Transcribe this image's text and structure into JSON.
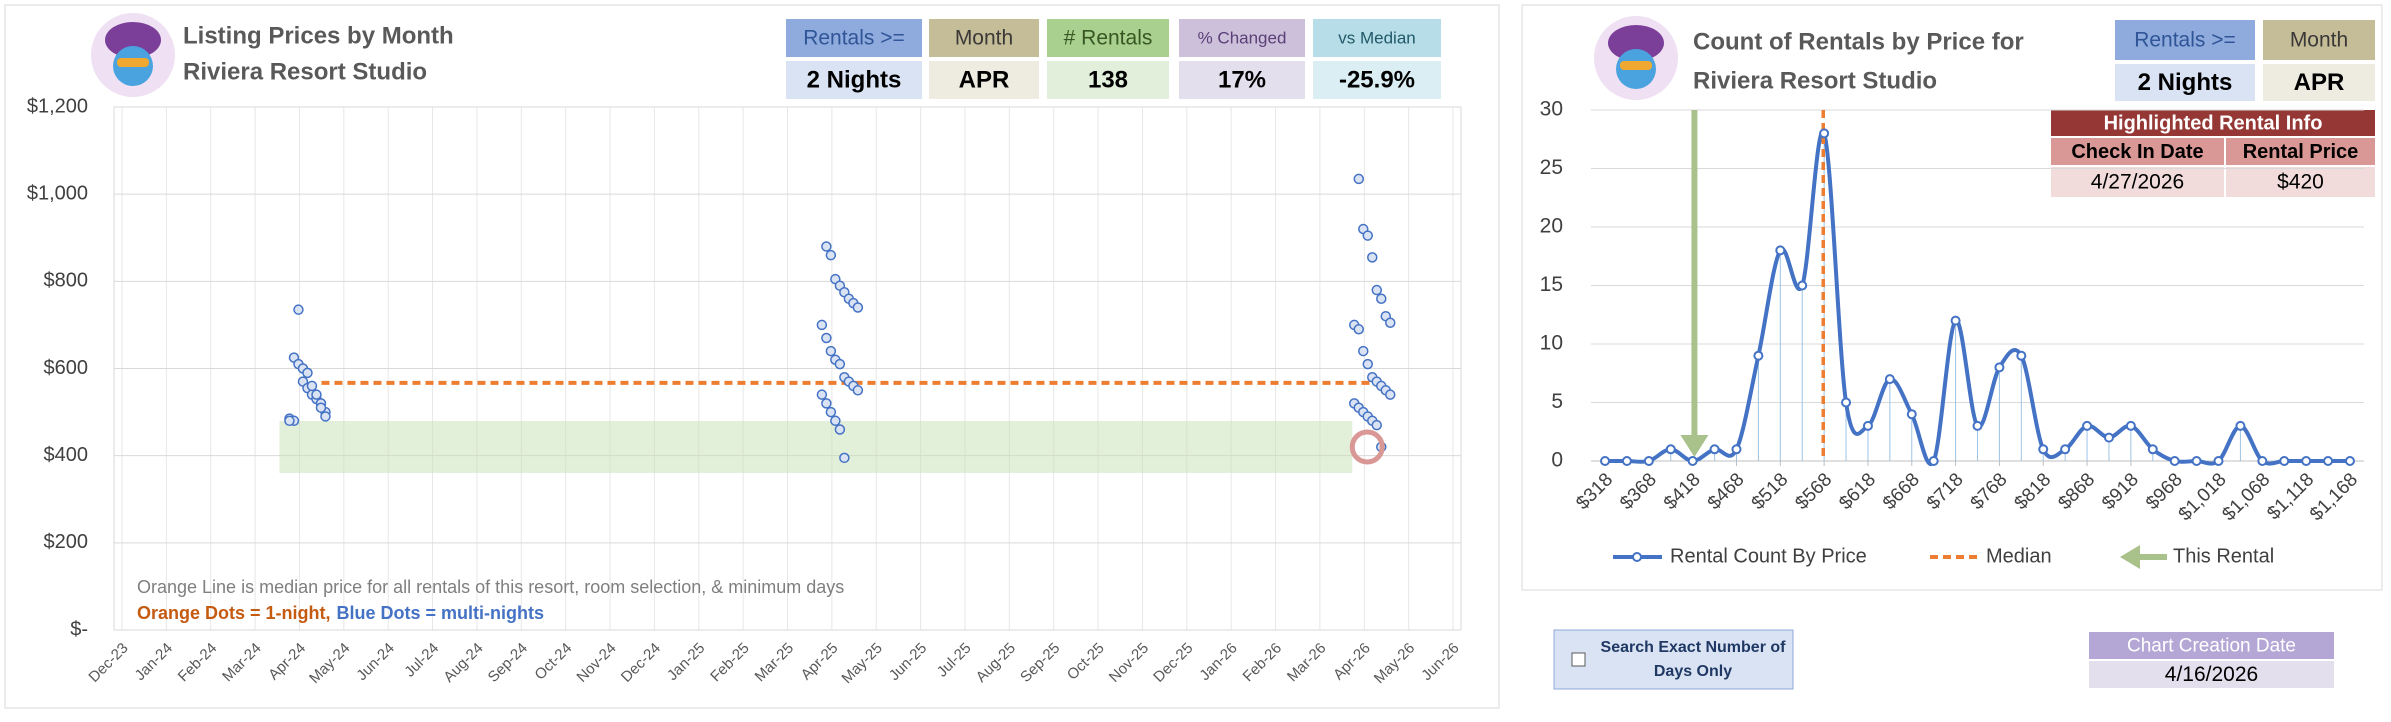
{
  "chart_data": [
    {
      "type": "scatter",
      "title": "Listing Prices by Month",
      "subtitle": "Riviera Resort Studio",
      "categories": [
        "Dec-23",
        "Jan-24",
        "Feb-24",
        "Mar-24",
        "Apr-24",
        "May-24",
        "Jun-24",
        "Jul-24",
        "Aug-24",
        "Sep-24",
        "Oct-24",
        "Nov-24",
        "Dec-24",
        "Jan-25",
        "Feb-25",
        "Mar-25",
        "Apr-25",
        "May-25",
        "Jun-25",
        "Jul-25",
        "Aug-25",
        "Sep-25",
        "Oct-25",
        "Nov-25",
        "Dec-25",
        "Jan-26",
        "Feb-26",
        "Mar-26",
        "Apr-26",
        "May-26",
        "Jun-26"
      ],
      "ylim": [
        0,
        1200
      ],
      "yticks": [
        {
          "value": 0,
          "label": "$-"
        },
        {
          "value": 200,
          "label": "$200"
        },
        {
          "value": 400,
          "label": "$400"
        },
        {
          "value": 600,
          "label": "$600"
        },
        {
          "value": 800,
          "label": "$800"
        },
        {
          "value": 1000,
          "label": "$1,000"
        },
        {
          "value": 1200,
          "label": "$1,200"
        }
      ],
      "grid": true,
      "series": [
        {
          "color": "#4472c4",
          "x": [
            "Apr-24",
            "Apr-24",
            "Apr-24",
            "Apr-24",
            "Apr-24",
            "Apr-24",
            "Apr-24",
            "Apr-24",
            "Apr-24",
            "Apr-24",
            "Apr-24",
            "Apr-24",
            "Apr-24",
            "Apr-24",
            "Apr-24",
            "Apr-24",
            "Apr-24",
            "Apr-24",
            "Apr-25",
            "Apr-25",
            "Apr-25",
            "Apr-25",
            "Apr-25",
            "Apr-25",
            "Apr-25",
            "Apr-25",
            "Apr-25",
            "Apr-25",
            "Apr-25",
            "Apr-25",
            "Apr-25",
            "Apr-25",
            "Apr-25",
            "Apr-25",
            "Apr-25",
            "Apr-25",
            "Apr-25",
            "Apr-25",
            "Apr-25",
            "Apr-25",
            "Apr-25",
            "Apr-26",
            "Apr-26",
            "Apr-26",
            "Apr-26",
            "Apr-26",
            "Apr-26",
            "Apr-26",
            "Apr-26",
            "Apr-26",
            "Apr-26",
            "Apr-26",
            "Apr-26",
            "Apr-26",
            "Apr-26",
            "Apr-26",
            "Apr-26",
            "Apr-26",
            "Apr-26",
            "Apr-26",
            "Apr-26",
            "Apr-26",
            "Apr-26",
            "Apr-26",
            "Apr-26"
          ],
          "values": [
            625,
            610,
            570,
            555,
            540,
            530,
            520,
            500,
            485,
            480,
            735,
            600,
            590,
            560,
            540,
            510,
            490,
            480,
            880,
            860,
            805,
            790,
            775,
            760,
            750,
            740,
            700,
            670,
            640,
            620,
            610,
            580,
            570,
            560,
            550,
            540,
            520,
            500,
            480,
            460,
            395,
            1035,
            920,
            905,
            855,
            780,
            760,
            720,
            705,
            700,
            690,
            640,
            610,
            580,
            570,
            560,
            550,
            540,
            520,
            510,
            500,
            490,
            480,
            470,
            420
          ]
        }
      ],
      "median": 567,
      "median_color": "#ed7d31",
      "highlight": {
        "x": "Apr-26",
        "y": 420
      },
      "note": "Orange Line is median price for all rentals of this resort, room selection, & minimum days",
      "dots_note": [
        {
          "text": "Orange Dots = 1-night,",
          "color": "#c55a11"
        },
        {
          "text": "Blue Dots = multi-nights",
          "color": "#4472c4"
        }
      ]
    },
    {
      "type": "line",
      "title": "Count of Rentals by Price for",
      "subtitle": "Riviera Resort Studio",
      "x": [
        318,
        343,
        368,
        393,
        418,
        443,
        468,
        493,
        518,
        543,
        568,
        593,
        618,
        643,
        668,
        693,
        718,
        743,
        768,
        793,
        818,
        843,
        868,
        893,
        918,
        943,
        968,
        993,
        1018,
        1043,
        1068,
        1093,
        1118,
        1143,
        1168
      ],
      "xlim": [
        302,
        1184
      ],
      "xticks": [
        {
          "value": 318,
          "label": "$318"
        },
        {
          "value": 368,
          "label": "$368"
        },
        {
          "value": 418,
          "label": "$418"
        },
        {
          "value": 468,
          "label": "$468"
        },
        {
          "value": 518,
          "label": "$518"
        },
        {
          "value": 568,
          "label": "$568"
        },
        {
          "value": 618,
          "label": "$618"
        },
        {
          "value": 668,
          "label": "$668"
        },
        {
          "value": 718,
          "label": "$718"
        },
        {
          "value": 768,
          "label": "$768"
        },
        {
          "value": 818,
          "label": "$818"
        },
        {
          "value": 868,
          "label": "$868"
        },
        {
          "value": 918,
          "label": "$918"
        },
        {
          "value": 968,
          "label": "$968"
        },
        {
          "value": 1018,
          "label": "$1,018"
        },
        {
          "value": 1068,
          "label": "$1,068"
        },
        {
          "value": 1118,
          "label": "$1,118"
        },
        {
          "value": 1168,
          "label": "$1,168"
        }
      ],
      "ylim": [
        0,
        30
      ],
      "yticks": [
        0,
        5,
        10,
        15,
        20,
        25,
        30
      ],
      "grid": true,
      "series": [
        {
          "name": "Rental Count By Price",
          "color": "#4472c4",
          "values": [
            0,
            0,
            0,
            1,
            0,
            1,
            1,
            9,
            18,
            15,
            28,
            5,
            3,
            7,
            4,
            0,
            12,
            3,
            8,
            9,
            1,
            1,
            3,
            2,
            3,
            1,
            0,
            0,
            0,
            3,
            0,
            0,
            0,
            0,
            0
          ]
        }
      ],
      "median": {
        "name": "Median",
        "value": 567,
        "color": "#ed7d31"
      },
      "this_rental": {
        "name": "This Rental",
        "value": 420,
        "color": "#a9c18a"
      }
    }
  ],
  "left_stats": [
    {
      "label": "Rentals >=",
      "value": "2 Nights"
    },
    {
      "label": "Month",
      "value": "APR"
    },
    {
      "label": "# Rentals",
      "value": "138"
    },
    {
      "label": "% Changed",
      "value": "17%"
    },
    {
      "label": "vs Median",
      "value": "-25.9%"
    }
  ],
  "right_stats": [
    {
      "label": "Rentals >=",
      "value": "2 Nights"
    },
    {
      "label": "Month",
      "value": "APR"
    }
  ],
  "highlighted_rental": {
    "title": "Highlighted Rental Info",
    "headers": [
      "Check In Date",
      "Rental Price"
    ],
    "row": [
      "4/27/2026",
      "$420"
    ]
  },
  "checkbox_label": "Search Exact Number of Days Only",
  "creation": {
    "label": "Chart Creation Date",
    "value": "4/16/2026"
  }
}
